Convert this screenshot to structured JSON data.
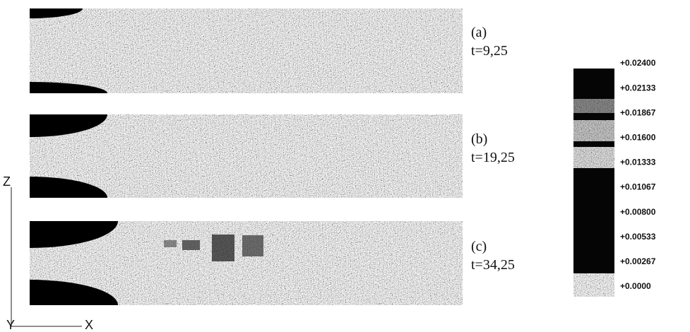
{
  "panels": [
    {
      "label": "(a)",
      "time": "t=9,25"
    },
    {
      "label": "(b)",
      "time": "t=19,25"
    },
    {
      "label": "(c)",
      "time": "t=34,25"
    }
  ],
  "colorbar": {
    "ticks": [
      "+0.02400",
      "+0.02133",
      "+0.01867",
      "+0.01600",
      "+0.01333",
      "+0.01067",
      "+0.00800",
      "+0.00533",
      "+0.00267",
      "+0.0000"
    ]
  },
  "axes": {
    "z": "Z",
    "x": "X",
    "y": "Y"
  }
}
